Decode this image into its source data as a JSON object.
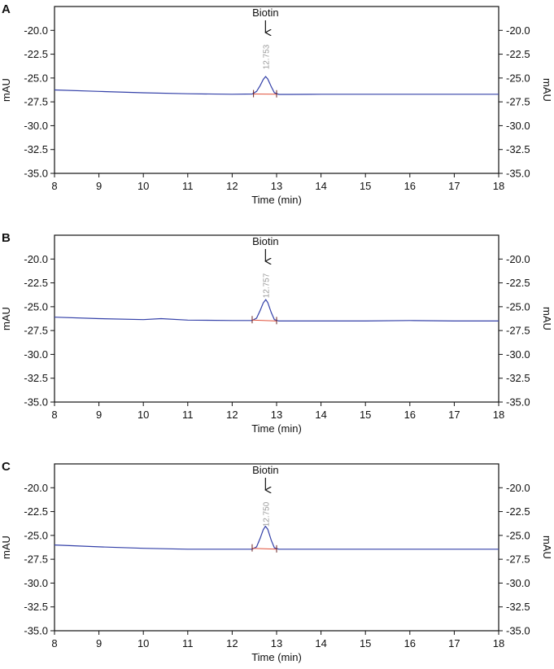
{
  "chart_data": [
    {
      "type": "line",
      "panel": "A",
      "xlabel": "Time (min)",
      "ylabel_left": "mAU",
      "ylabel_right": "mAU",
      "xlim": [
        8,
        18
      ],
      "ylim": [
        -35.0,
        -17.5
      ],
      "x_ticks": [
        "8",
        "9",
        "10",
        "11",
        "12",
        "13",
        "14",
        "15",
        "16",
        "17",
        "18"
      ],
      "y_ticks": [
        "-20.0",
        "-22.5",
        "-25.0",
        "-27.5",
        "-30.0",
        "-32.5",
        "-35.0"
      ],
      "annotation": "Biotin",
      "annotation_x": 12.75,
      "peak_label": "12.753",
      "peak_time": 12.753,
      "series": [
        {
          "name": "signal",
          "color": "#3340a8",
          "x": [
            8.0,
            9.0,
            10.0,
            11.0,
            12.0,
            12.45,
            12.55,
            12.63,
            12.7,
            12.753,
            12.8,
            12.88,
            12.95,
            13.05,
            13.3,
            14.0,
            15.0,
            16.0,
            17.0,
            18.0
          ],
          "y": [
            -26.25,
            -26.4,
            -26.55,
            -26.65,
            -26.7,
            -26.68,
            -26.4,
            -25.8,
            -25.15,
            -24.85,
            -25.1,
            -25.9,
            -26.55,
            -26.72,
            -26.72,
            -26.7,
            -26.7,
            -26.7,
            -26.7,
            -26.7
          ]
        },
        {
          "name": "baseline",
          "color": "#e0503a",
          "x": [
            12.48,
            13.0
          ],
          "y": [
            -26.68,
            -26.7
          ]
        }
      ]
    },
    {
      "type": "line",
      "panel": "B",
      "xlabel": "Time (min)",
      "ylabel_left": "mAU",
      "ylabel_right": "mAU",
      "xlim": [
        8,
        18
      ],
      "ylim": [
        -35.0,
        -17.5
      ],
      "x_ticks": [
        "8",
        "9",
        "10",
        "11",
        "12",
        "13",
        "14",
        "15",
        "16",
        "17",
        "18"
      ],
      "y_ticks": [
        "-20.0",
        "-22.5",
        "-25.0",
        "-27.5",
        "-30.0",
        "-32.5",
        "-35.0"
      ],
      "annotation": "Biotin",
      "annotation_x": 12.75,
      "peak_label": "12.757",
      "peak_time": 12.757,
      "series": [
        {
          "name": "signal",
          "color": "#3340a8",
          "x": [
            8.0,
            9.0,
            10.0,
            10.4,
            11.0,
            12.0,
            12.45,
            12.55,
            12.63,
            12.7,
            12.757,
            12.8,
            12.88,
            12.95,
            13.05,
            13.3,
            14.0,
            15.0,
            16.0,
            17.0,
            18.0
          ],
          "y": [
            -26.1,
            -26.25,
            -26.35,
            -26.25,
            -26.4,
            -26.45,
            -26.45,
            -26.2,
            -25.4,
            -24.6,
            -24.25,
            -24.55,
            -25.6,
            -26.35,
            -26.5,
            -26.5,
            -26.5,
            -26.5,
            -26.45,
            -26.5,
            -26.5
          ]
        },
        {
          "name": "baseline",
          "color": "#e0503a",
          "x": [
            12.45,
            13.0
          ],
          "y": [
            -26.4,
            -26.5
          ]
        }
      ]
    },
    {
      "type": "line",
      "panel": "C",
      "xlabel": "Time (min)",
      "ylabel_left": "mAU",
      "ylabel_right": "mAU",
      "xlim": [
        8,
        18
      ],
      "ylim": [
        -35.0,
        -17.5
      ],
      "x_ticks": [
        "8",
        "9",
        "10",
        "11",
        "12",
        "13",
        "14",
        "15",
        "16",
        "17",
        "18"
      ],
      "y_ticks": [
        "-20.0",
        "-22.5",
        "-25.0",
        "-27.5",
        "-30.0",
        "-32.5",
        "-35.0"
      ],
      "annotation": "Biotin",
      "annotation_x": 12.75,
      "peak_label": "12.750",
      "peak_time": 12.75,
      "series": [
        {
          "name": "signal",
          "color": "#3340a8",
          "x": [
            8.0,
            9.0,
            10.0,
            11.0,
            12.0,
            12.45,
            12.55,
            12.63,
            12.7,
            12.75,
            12.8,
            12.88,
            12.95,
            13.05,
            13.3,
            14.0,
            15.0,
            16.0,
            17.0,
            18.0
          ],
          "y": [
            -26.0,
            -26.2,
            -26.35,
            -26.45,
            -26.45,
            -26.45,
            -26.2,
            -25.3,
            -24.4,
            -24.05,
            -24.35,
            -25.5,
            -26.3,
            -26.45,
            -26.45,
            -26.45,
            -26.45,
            -26.45,
            -26.45,
            -26.45
          ]
        },
        {
          "name": "baseline",
          "color": "#e0503a",
          "x": [
            12.45,
            13.0
          ],
          "y": [
            -26.35,
            -26.45
          ]
        }
      ]
    }
  ]
}
